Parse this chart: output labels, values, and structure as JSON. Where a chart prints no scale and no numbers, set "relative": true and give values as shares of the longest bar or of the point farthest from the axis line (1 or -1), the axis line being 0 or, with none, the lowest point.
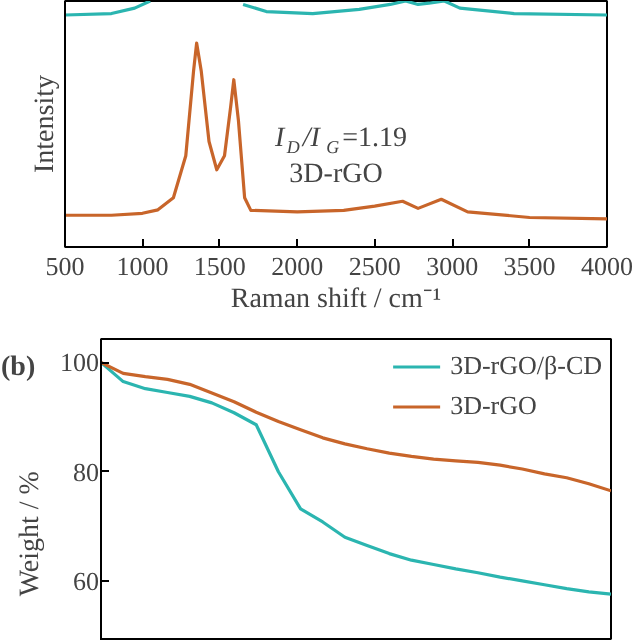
{
  "chart_data": [
    {
      "type": "line",
      "relative": true,
      "xlabel": "Raman shift / cm⁻¹",
      "ylabel": "Intensity",
      "xlim": [
        500,
        4000
      ],
      "xticks": [
        500,
        1000,
        1500,
        2000,
        2500,
        3000,
        3500,
        4000
      ],
      "grid": false,
      "legend": false,
      "annotations": [
        "I$_{D}$/I$_{G}$=1.19"
      ],
      "series": [
        {
          "color": "#2bb5b0",
          "x": [
            500,
            800,
            950,
            1050,
            1100,
            1620,
            1650,
            1800,
            2100,
            2400,
            2600,
            2700,
            2780,
            2850,
            2950,
            3050,
            3400,
            4000
          ],
          "values": [
            0.943,
            0.949,
            0.971,
            1.0,
            null,
            null,
            0.986,
            0.957,
            0.949,
            0.966,
            0.986,
            1.0,
            0.986,
            0.991,
            1.0,
            0.971,
            0.949,
            0.943
          ]
        },
        {
          "name": "3D-rGO",
          "color": "#c8652a",
          "x": [
            500,
            800,
            1000,
            1100,
            1200,
            1280,
            1330,
            1350,
            1380,
            1430,
            1480,
            1530,
            1570,
            1590,
            1620,
            1660,
            1700,
            2000,
            2300,
            2500,
            2680,
            2780,
            2930,
            3100,
            3500,
            4000
          ],
          "values": [
            0.129,
            0.129,
            0.137,
            0.151,
            0.2,
            0.371,
            0.714,
            0.829,
            0.714,
            0.429,
            0.314,
            0.371,
            0.571,
            0.68,
            0.514,
            0.2,
            0.149,
            0.143,
            0.149,
            0.166,
            0.186,
            0.157,
            0.194,
            0.143,
            0.12,
            0.114
          ]
        }
      ]
    },
    {
      "type": "line",
      "ylabel": "Weight / %",
      "ylim": [
        49,
        104.3
      ],
      "yticks": [
        60,
        80,
        100
      ],
      "tick_labels": "y",
      "grid": false,
      "legend": "top right",
      "annotations": [
        "(b)"
      ],
      "categories": [
        null,
        null,
        null,
        null,
        null,
        null,
        null,
        null,
        null,
        null,
        null,
        null,
        null,
        null,
        null,
        null,
        null,
        null,
        null,
        null,
        null,
        null,
        null,
        null
      ],
      "series": [
        {
          "name": "3D-rGO/β-CD",
          "color": "#2bb5b0",
          "values": [
            100,
            96.5,
            95.2,
            94.5,
            93.8,
            92.6,
            90.8,
            88.6,
            80.0,
            73.2,
            70.8,
            68.0,
            66.5,
            65.0,
            63.8,
            63.0,
            62.2,
            61.5,
            60.7,
            60.0,
            59.3,
            58.6,
            58.0,
            57.6
          ]
        },
        {
          "name": "3D-rGO",
          "color": "#c8652a",
          "values": [
            100,
            98.0,
            97.4,
            96.9,
            96.0,
            94.4,
            92.8,
            90.9,
            89.2,
            87.7,
            86.2,
            85.1,
            84.2,
            83.4,
            82.8,
            82.3,
            82.0,
            81.7,
            81.2,
            80.5,
            79.6,
            78.9,
            77.8,
            76.5
          ]
        }
      ]
    }
  ]
}
